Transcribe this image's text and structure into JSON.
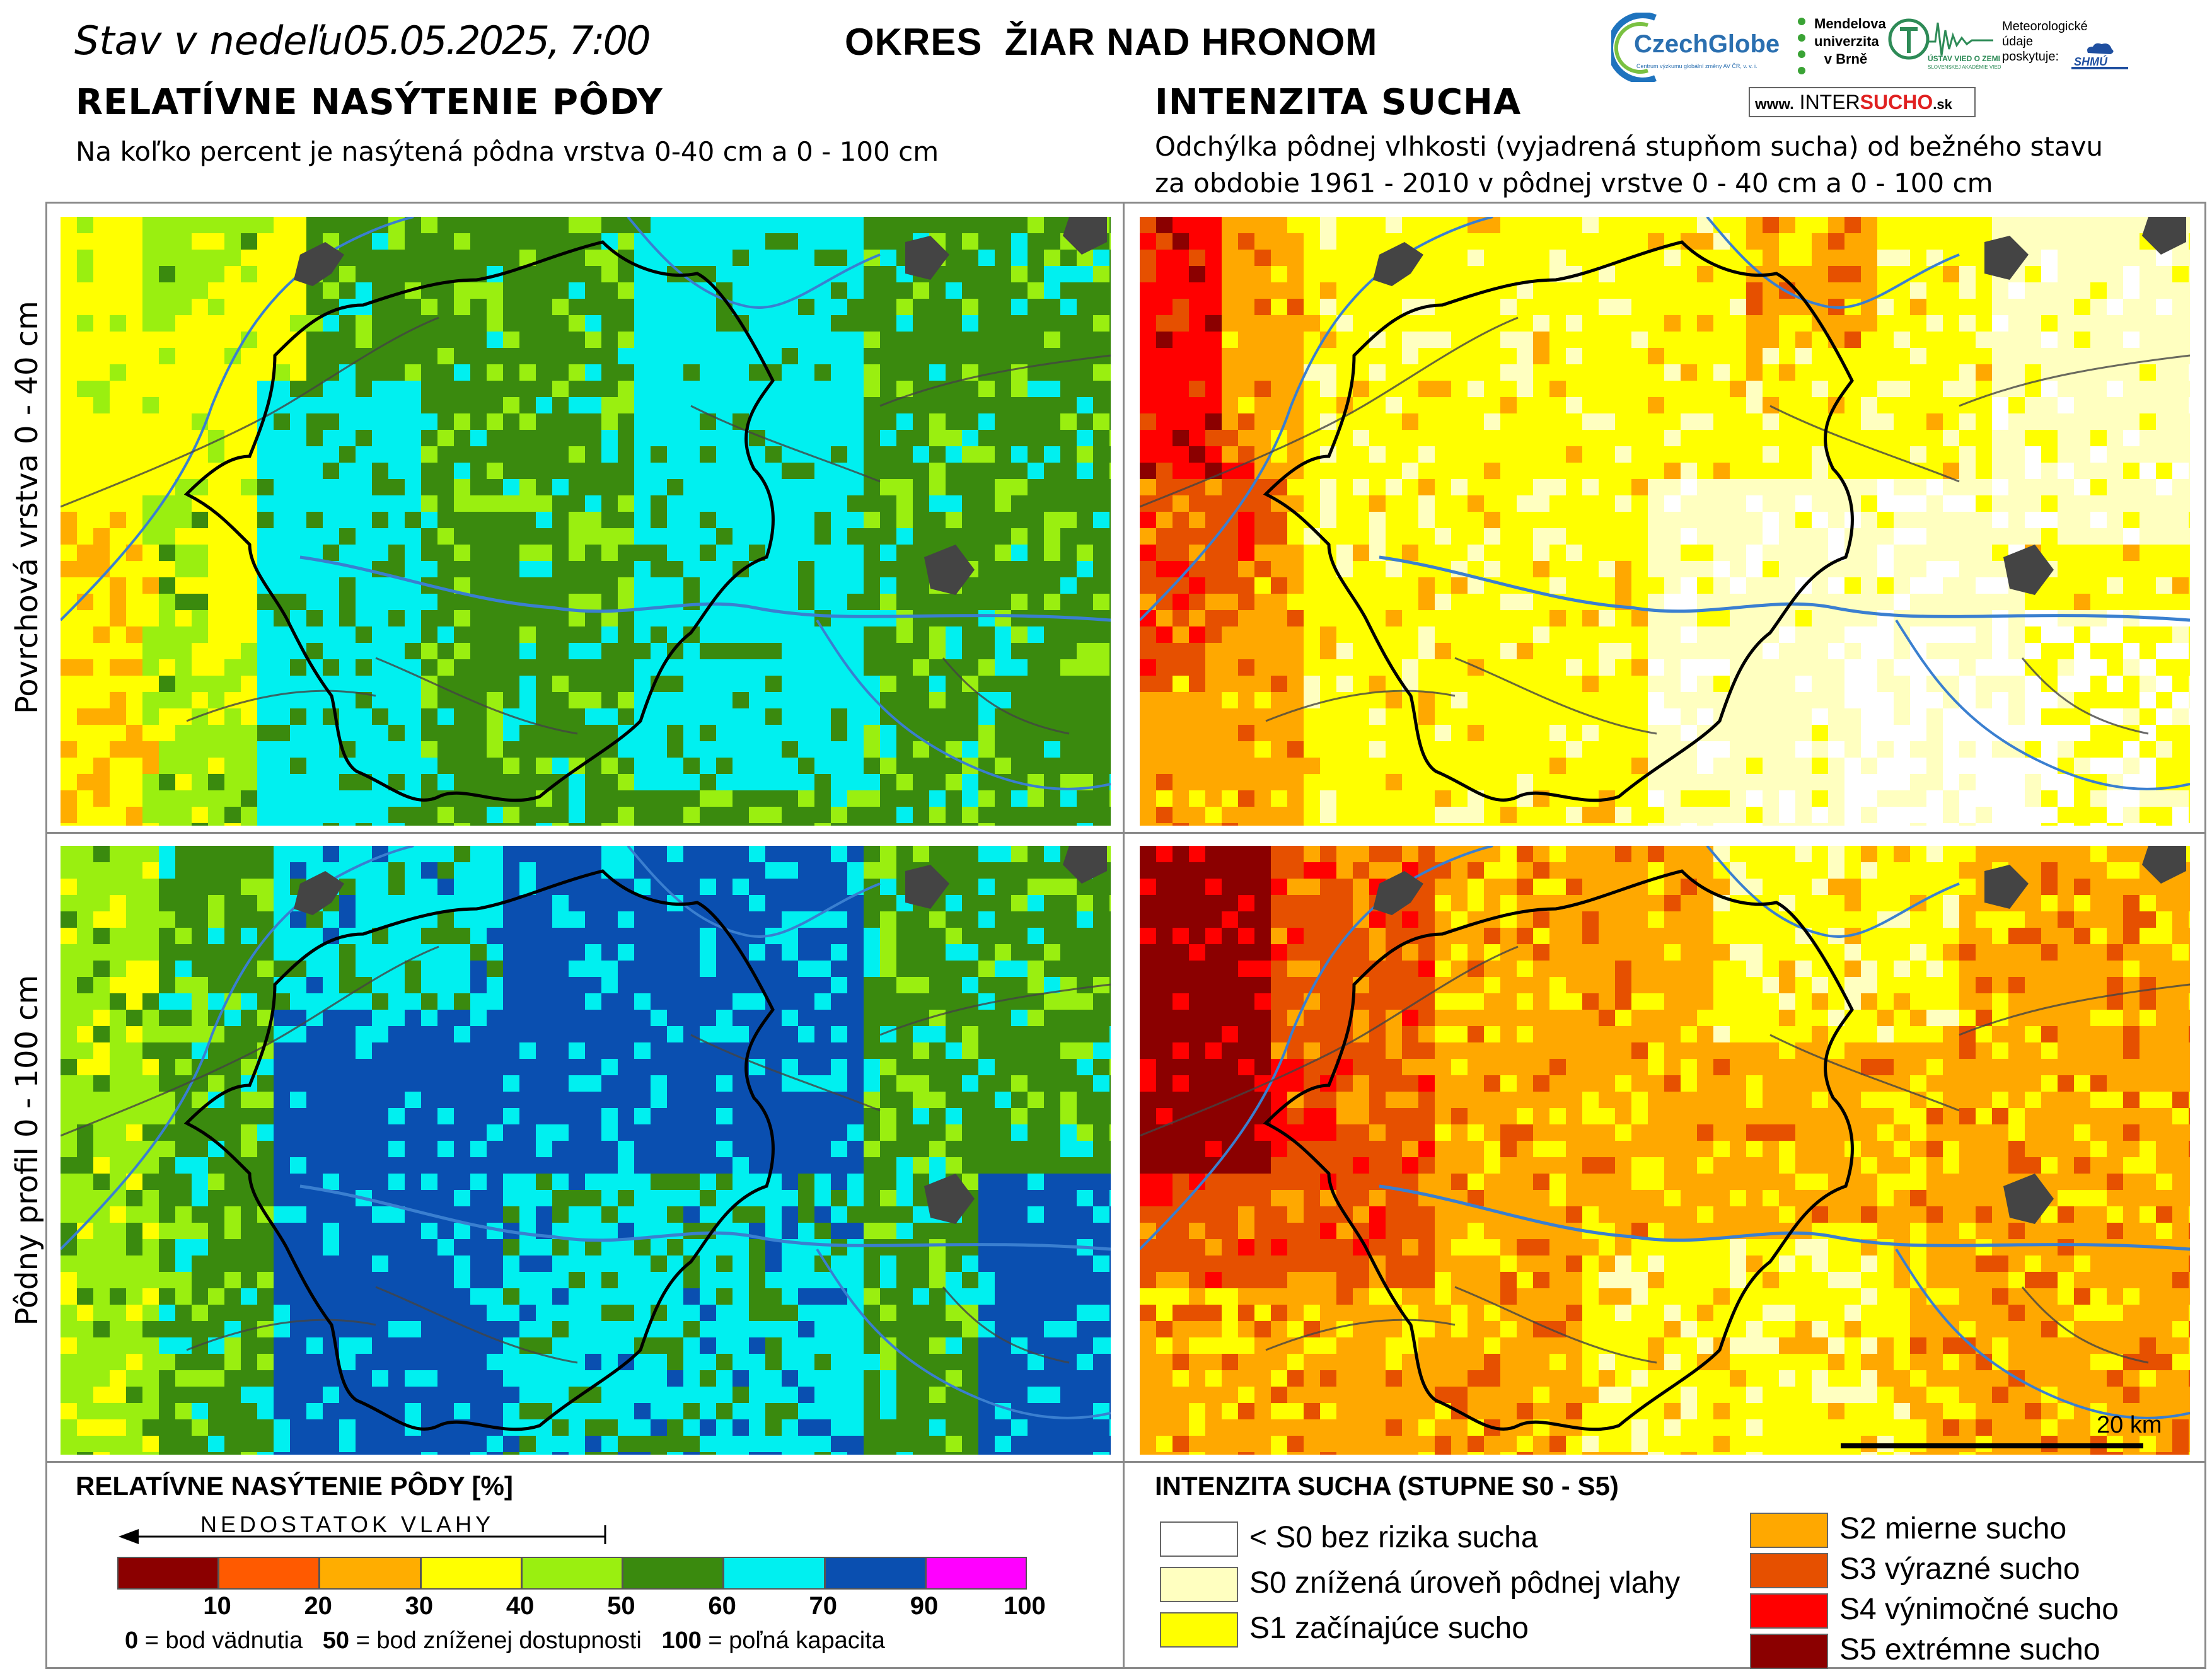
{
  "header": {
    "date_prefix": "Stav v nedeľu",
    "date_value": "05.05.2025, 7:00",
    "district": "OKRES  ŽIAR NAD HRONOM"
  },
  "left_section": {
    "title": "RELATÍVNE NASÝTENIE PÔDY",
    "subtitle": "Na koľko percent je nasýtená pôdna vrstva 0-40 cm a 0 - 100 cm"
  },
  "right_section": {
    "title": "INTENZITA SUCHA",
    "subtitle_line1": "Odchýlka pôdnej vlhkosti (vyjadrená stupňom sucha) od bežného stavu",
    "subtitle_line2": "za obdobie 1961 - 2010 v pôdnej vrstve 0 - 40 cm a 0 - 100 cm"
  },
  "row_labels": {
    "top": "Povrchová vrstva 0 - 40 cm",
    "bottom": "Pôdny profil 0 - 100 cm"
  },
  "logos": {
    "czechglobe": "CzechGlobe",
    "czechglobe_small": "Centrum výzkumu globální změny AV ČR, v. v. i.",
    "mendel_1": "Mendelova",
    "mendel_2": "univerzita",
    "mendel_3": "v Brně",
    "uvz_1": "ÚSTAV VIED O ZEMI",
    "uvz_2": "SLOVENSKEJ AKADÉMIE VIED",
    "meteo_1": "Meteorologické",
    "meteo_2": "údaje",
    "meteo_3": "poskytuje:",
    "shmu": "SHMÚ",
    "intersucho_prefix": "www.",
    "intersucho_a": "INTER",
    "intersucho_b": "SUCHO",
    "intersucho_c": ".sk"
  },
  "scale_bar": {
    "label": "20 km"
  },
  "legend_saturation": {
    "title": "RELATÍVNE NASÝTENIE PÔDY [%]",
    "arrow_label": "NEDOSTATOK VLAHY",
    "ticks": [
      "10",
      "20",
      "30",
      "40",
      "50",
      "60",
      "70",
      "90",
      "100"
    ],
    "classes": [
      {
        "from": 0,
        "to": 10,
        "color": "#8b0000"
      },
      {
        "from": 10,
        "to": 20,
        "color": "#ff5a00"
      },
      {
        "from": 20,
        "to": 30,
        "color": "#ffad00"
      },
      {
        "from": 30,
        "to": 40,
        "color": "#ffff00"
      },
      {
        "from": 40,
        "to": 50,
        "color": "#9aef10"
      },
      {
        "from": 50,
        "to": 60,
        "color": "#3a8a0e"
      },
      {
        "from": 60,
        "to": 70,
        "color": "#00f0f0"
      },
      {
        "from": 70,
        "to": 90,
        "color": "#0a4fb0"
      },
      {
        "from": 90,
        "to": 100,
        "color": "#ff00ff"
      }
    ],
    "note_0_key": "0",
    "note_0_text": " = bod vädnutia",
    "note_50_key": "50",
    "note_50_text": " = bod zníženej dostupnosti",
    "note_100_key": "100",
    "note_100_text": " = poľná kapacita"
  },
  "legend_drought": {
    "title": "INTENZITA SUCHA (STUPNE S0 - S5)",
    "items": [
      {
        "label": "< S0 bez rizika sucha",
        "color": "#ffffff"
      },
      {
        "label": "S0 znížená úroveň pôdnej vlahy",
        "color": "#ffffc0"
      },
      {
        "label": "S1 začínajúce sucho",
        "color": "#ffff00"
      },
      {
        "label": "S2 mierne sucho",
        "color": "#ffa800"
      },
      {
        "label": "S3 výrazné sucho",
        "color": "#e65000"
      },
      {
        "label": "S4 výnimočné sucho",
        "color": "#ff0000"
      },
      {
        "label": "S5 extrémne sucho",
        "color": "#8b0000"
      }
    ]
  }
}
